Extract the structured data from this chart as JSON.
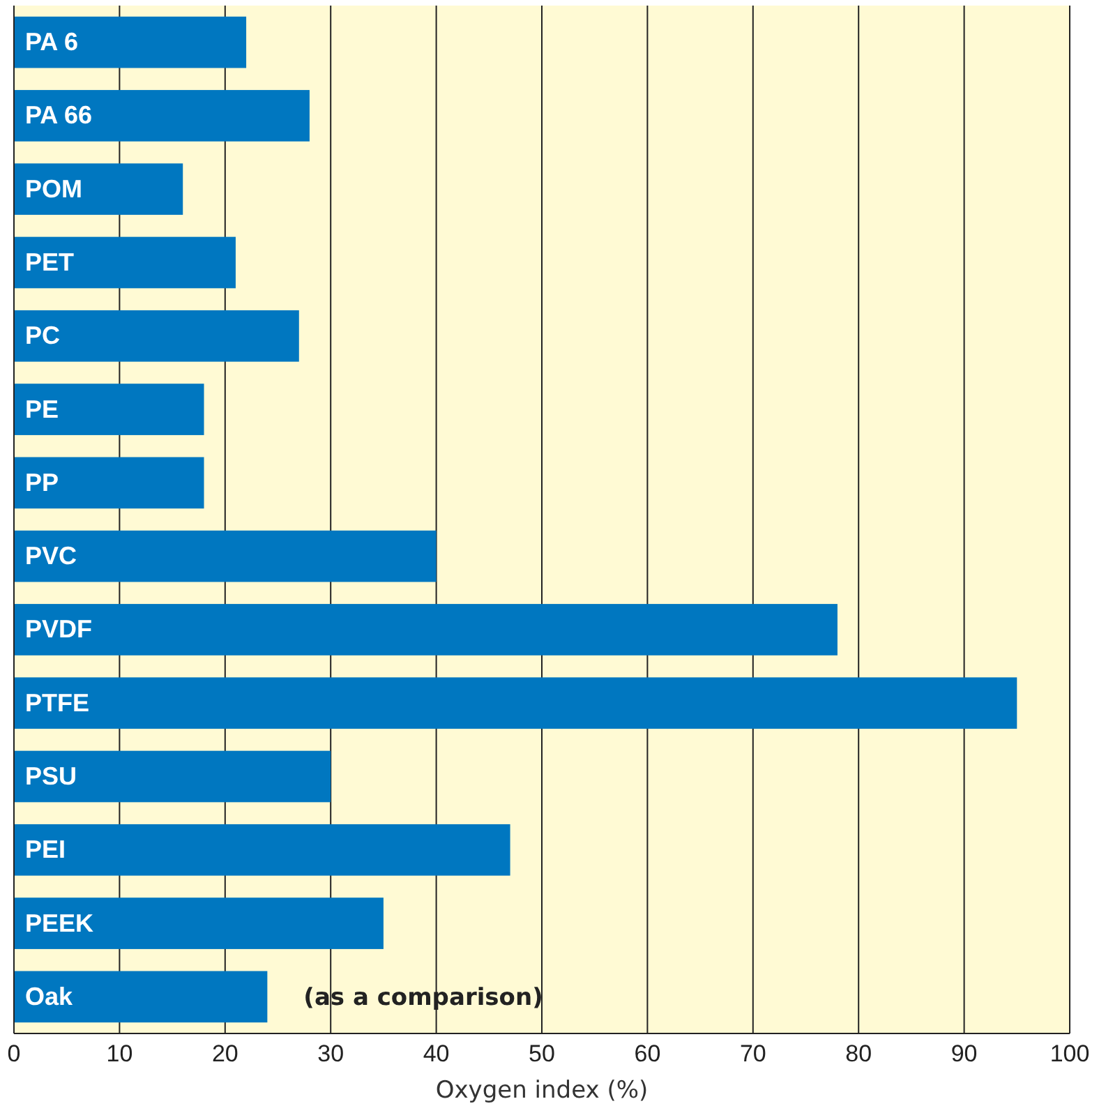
{
  "chart_data": {
    "type": "bar",
    "orientation": "horizontal",
    "xlabel": "Oxygen index (%)",
    "categories": [
      "PA 6",
      "PA 66",
      "POM",
      "PET",
      "PC",
      "PE",
      "PP",
      "PVC",
      "PVDF",
      "PTFE",
      "PSU",
      "PEI",
      "PEEK",
      "Oak"
    ],
    "values": [
      22,
      28,
      16,
      21,
      27,
      18,
      18,
      40,
      78,
      95,
      30,
      47,
      35,
      24
    ],
    "color": "#0077c0",
    "xlim": [
      0,
      100
    ],
    "xticks": [
      0,
      10,
      20,
      30,
      40,
      50,
      60,
      70,
      80,
      90,
      100
    ],
    "grid": "x",
    "annotations": [
      {
        "text": "(as a comparison)",
        "x": 24,
        "y": "Oak"
      }
    ]
  }
}
